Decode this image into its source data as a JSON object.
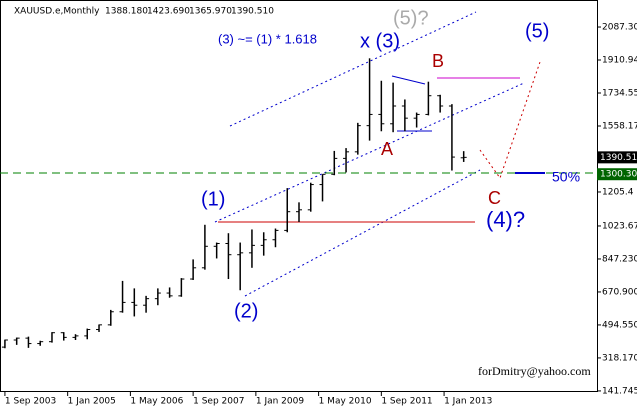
{
  "chart_data": {
    "type": "ohlc",
    "header": {
      "symbol": "XAUUSD.e,Monthly",
      "ohlc": [
        "1388.180",
        "1423.690",
        "1365.970",
        "1390.510"
      ]
    },
    "x": [
      "2003-09",
      "2003-12",
      "2004-03",
      "2004-06",
      "2004-09",
      "2004-12",
      "2005-03",
      "2005-06",
      "2005-09",
      "2005-12",
      "2006-03",
      "2006-06",
      "2006-09",
      "2006-12",
      "2007-03",
      "2007-06",
      "2007-09",
      "2007-12",
      "2008-03",
      "2008-06",
      "2008-09",
      "2008-12",
      "2009-03",
      "2009-06",
      "2009-09",
      "2009-12",
      "2010-03",
      "2010-06",
      "2010-09",
      "2010-12",
      "2011-03",
      "2011-06",
      "2011-09",
      "2011-12",
      "2012-03",
      "2012-06",
      "2012-09",
      "2012-12",
      "2013-03",
      "2013-06"
    ],
    "open": [
      376,
      414,
      424,
      395,
      405,
      453,
      428,
      436,
      470,
      495,
      565,
      615,
      600,
      635,
      665,
      650,
      740,
      800,
      915,
      930,
      870,
      880,
      920,
      950,
      1000,
      1100,
      1110,
      1245,
      1300,
      1385,
      1420,
      1560,
      1620,
      1570,
      1665,
      1600,
      1620,
      1720,
      1665,
      1388.18
    ],
    "high": [
      416,
      427,
      432,
      410,
      456,
      456,
      445,
      475,
      497,
      575,
      730,
      690,
      650,
      690,
      695,
      745,
      845,
      1030,
      935,
      985,
      935,
      1005,
      990,
      1010,
      1226,
      1150,
      1255,
      1300,
      1425,
      1440,
      1575,
      1920,
      1800,
      1790,
      1700,
      1630,
      1795,
      1725,
      1675,
      1423.69
    ],
    "low": [
      370,
      388,
      372,
      383,
      400,
      411,
      414,
      418,
      457,
      490,
      560,
      540,
      560,
      600,
      640,
      645,
      735,
      790,
      850,
      740,
      680,
      800,
      865,
      910,
      990,
      1045,
      1100,
      1155,
      1295,
      1310,
      1405,
      1480,
      1530,
      1525,
      1530,
      1550,
      1615,
      1630,
      1320,
      1365.97
    ],
    "close": [
      414,
      424,
      395,
      405,
      453,
      428,
      436,
      470,
      495,
      565,
      615,
      600,
      635,
      665,
      650,
      740,
      800,
      915,
      930,
      870,
      880,
      920,
      950,
      1000,
      1100,
      1110,
      1245,
      1300,
      1385,
      1420,
      1560,
      1620,
      1570,
      1665,
      1600,
      1620,
      1720,
      1665,
      1392,
      1390.51
    ],
    "color": "#000000",
    "xlim": [
      "2003-08",
      "2016-04"
    ],
    "xticks": [
      {
        "value": "2003-09",
        "label": "1 Sep 2003"
      },
      {
        "value": "2005-01",
        "label": "1 Jan 2005"
      },
      {
        "value": "2006-05",
        "label": "1 May 2006"
      },
      {
        "value": "2007-09",
        "label": "1 Sep 2007"
      },
      {
        "value": "2009-01",
        "label": "1 Jan 2009"
      },
      {
        "value": "2010-05",
        "label": "1 May 2010"
      },
      {
        "value": "2011-09",
        "label": "1 Sep 2011"
      },
      {
        "value": "2013-01",
        "label": "1 Jan 2013"
      }
    ],
    "ylim": [
      136,
      2189
    ],
    "yticks": [
      {
        "value": 2087.3,
        "label": "2087.30"
      },
      {
        "value": 1910.94,
        "label": "1910.940"
      },
      {
        "value": 1734.55,
        "label": "1734.550"
      },
      {
        "value": 1558.17,
        "label": "1558.170"
      },
      {
        "value": 1205.4,
        "label": "1205.4"
      },
      {
        "value": 1023.67,
        "label": "1023.670"
      },
      {
        "value": 847.23,
        "label": "847.230"
      },
      {
        "value": 670.9,
        "label": "670.900"
      },
      {
        "value": 494.55,
        "label": "494.550"
      },
      {
        "value": 318.17,
        "label": "318.170"
      },
      {
        "value": 141.745,
        "label": "141.745"
      }
    ],
    "price_labels": [
      {
        "value": 1390.51,
        "label": "1390.51",
        "color": "#000000"
      },
      {
        "value": 1300.3,
        "label": "1300.30",
        "color": "#006400"
      }
    ],
    "annotations": [
      "(3) ~= (1) * 1.618",
      "x (3)",
      "(5)?",
      "(5)",
      "B",
      "A",
      "C",
      "50%",
      "(4)?",
      "(1)",
      "(2)",
      "forDmitry@yahoo.com"
    ]
  }
}
